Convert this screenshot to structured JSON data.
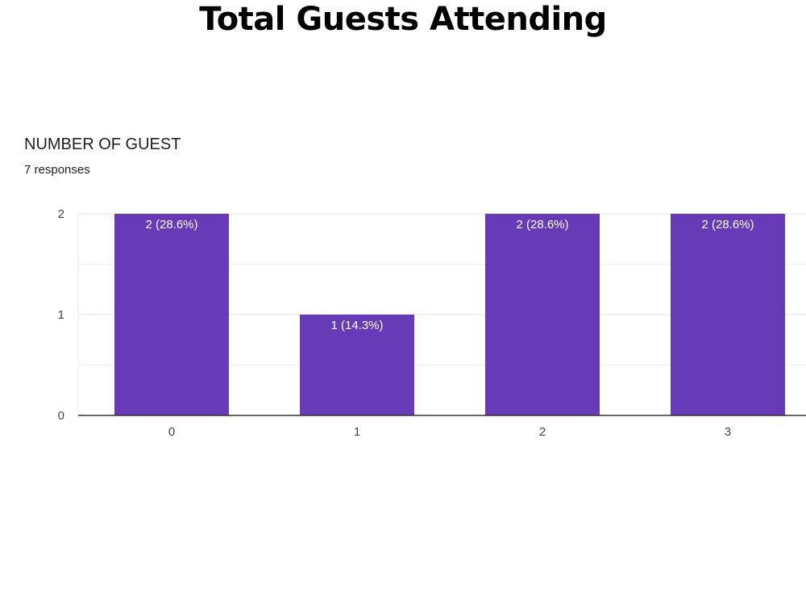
{
  "heading": "Total Guests Attending",
  "chart_data": {
    "type": "bar",
    "title": "NUMBER OF GUEST",
    "subtitle": "7 responses",
    "categories": [
      "0",
      "1",
      "2",
      "3"
    ],
    "values": [
      2,
      1,
      2,
      2
    ],
    "data_labels": [
      "2 (28.6%)",
      "1 (14.3%)",
      "2 (28.6%)",
      "2 (28.6%)"
    ],
    "y_ticks": [
      "0",
      "1",
      "2"
    ],
    "ylim": [
      0,
      2
    ],
    "grid": true,
    "bar_color": "#673ab7",
    "grid_color": "#ebebeb",
    "axis_color": "#333333"
  }
}
